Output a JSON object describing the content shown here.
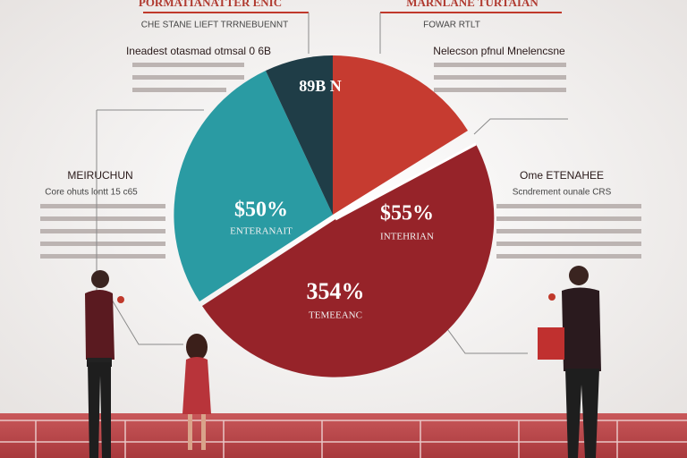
{
  "top_left": {
    "title": "PORMATIANATTER ENIC",
    "subtitle": "CHE STANE LIEFT TRRNEBUENNT"
  },
  "top_right": {
    "title": "MARNLANE TURTAIAN",
    "subtitle": "FOWAR RTLT"
  },
  "blocks": [
    {
      "heading": "Ineadest otasmad otmsal 0 6B"
    },
    {
      "heading": "Nelecson pfnul Mnelencsne"
    },
    {
      "heading": "MEIRUCHUN",
      "subheading": "Core ohuts lontt 15 c65"
    },
    {
      "heading": "Ome ETENAHEE",
      "subheading": "Scndrement ounale CRS"
    }
  ],
  "pie": {
    "slices": [
      {
        "label": "89B N"
      },
      {
        "label": "$50%",
        "caption": "ENTERANAIT"
      },
      {
        "label": "$55%",
        "caption": "INTEHRIAN"
      },
      {
        "label": "354%",
        "caption": "TEMEEANC"
      }
    ]
  }
}
